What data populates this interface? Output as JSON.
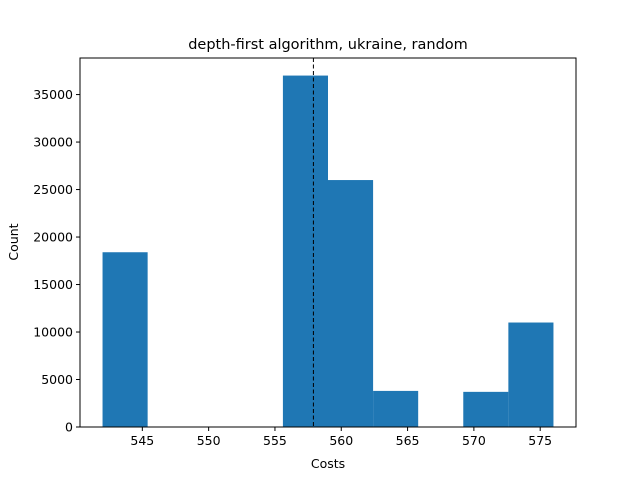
{
  "chart_data": {
    "type": "bar",
    "title": "depth-first algorithm, ukraine, random",
    "xlabel": "Costs",
    "ylabel": "Count",
    "xlim": [
      540.3,
      577.7
    ],
    "ylim": [
      0,
      38850
    ],
    "xticks": [
      545,
      550,
      555,
      560,
      565,
      570,
      575
    ],
    "yticks": [
      0,
      5000,
      10000,
      15000,
      20000,
      25000,
      30000,
      35000
    ],
    "bins": [
      {
        "start": 542.0,
        "end": 545.4,
        "value": 18400
      },
      {
        "start": 545.4,
        "end": 548.8,
        "value": 0
      },
      {
        "start": 548.8,
        "end": 552.2,
        "value": 0
      },
      {
        "start": 552.2,
        "end": 555.6,
        "value": 0
      },
      {
        "start": 555.6,
        "end": 559.0,
        "value": 37000
      },
      {
        "start": 559.0,
        "end": 562.4,
        "value": 26000
      },
      {
        "start": 562.4,
        "end": 565.8,
        "value": 3800
      },
      {
        "start": 565.8,
        "end": 569.2,
        "value": 0
      },
      {
        "start": 569.2,
        "end": 572.6,
        "value": 3700
      },
      {
        "start": 572.6,
        "end": 576.0,
        "value": 11000
      }
    ],
    "reference_line": {
      "x": 557.9,
      "style": "dashed"
    },
    "bar_color": "#1f77b4",
    "grid": false,
    "legend": "none"
  }
}
